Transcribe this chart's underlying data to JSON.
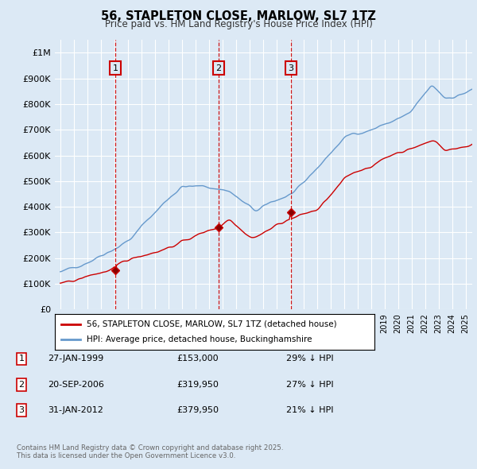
{
  "title": "56, STAPLETON CLOSE, MARLOW, SL7 1TZ",
  "subtitle": "Price paid vs. HM Land Registry's House Price Index (HPI)",
  "background_color": "#dce9f5",
  "plot_bg_color": "#dce9f5",
  "ylim": [
    0,
    1050000
  ],
  "yticks": [
    0,
    100000,
    200000,
    300000,
    400000,
    500000,
    600000,
    700000,
    800000,
    900000,
    1000000
  ],
  "ytick_labels": [
    "£0",
    "£100K",
    "£200K",
    "£300K",
    "£400K",
    "£500K",
    "£600K",
    "£700K",
    "£800K",
    "£900K",
    "£1M"
  ],
  "red_line_label": "56, STAPLETON CLOSE, MARLOW, SL7 1TZ (detached house)",
  "blue_line_label": "HPI: Average price, detached house, Buckinghamshire",
  "sale_points": [
    {
      "num": 1,
      "date_label": "27-JAN-1999",
      "price": 153000,
      "pct": "29%",
      "x_year": 1999.07
    },
    {
      "num": 2,
      "date_label": "20-SEP-2006",
      "price": 319950,
      "pct": "27%",
      "x_year": 2006.72
    },
    {
      "num": 3,
      "date_label": "31-JAN-2012",
      "price": 379950,
      "pct": "21%",
      "x_year": 2012.08
    }
  ],
  "footer_line1": "Contains HM Land Registry data © Crown copyright and database right 2025.",
  "footer_line2": "This data is licensed under the Open Government Licence v3.0.",
  "red_color": "#cc0000",
  "blue_color": "#6699cc",
  "vline_color": "#cc0000",
  "marker_box_color": "#cc0000",
  "xlim_min": 1994.6,
  "xlim_max": 2025.5
}
